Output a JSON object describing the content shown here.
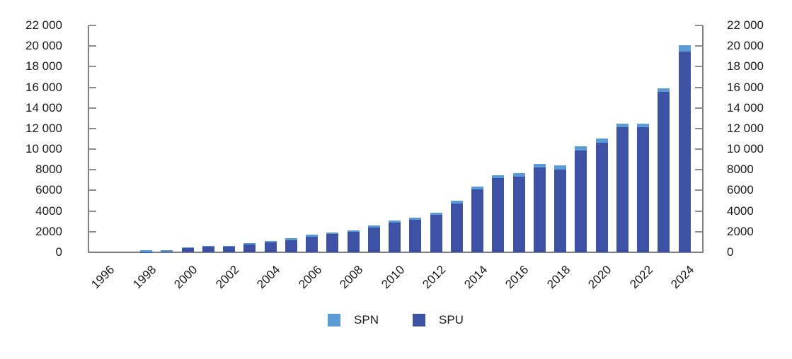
{
  "chart_data": {
    "type": "bar",
    "stacked": true,
    "title": "",
    "xlabel": "",
    "ylabel": "",
    "categories": [
      1996,
      1997,
      1998,
      1999,
      2000,
      2001,
      2002,
      2003,
      2004,
      2005,
      2006,
      2007,
      2008,
      2009,
      2010,
      2011,
      2012,
      2013,
      2014,
      2015,
      2016,
      2017,
      2018,
      2019,
      2020,
      2021,
      2022,
      2023,
      2024
    ],
    "series": [
      {
        "name": "SPN",
        "color": "#5B9BD5",
        "stack_role": "top",
        "values": [
          0,
          0,
          170,
          180,
          70,
          110,
          110,
          160,
          170,
          200,
          200,
          150,
          150,
          200,
          200,
          200,
          200,
          250,
          300,
          300,
          350,
          350,
          400,
          400,
          450,
          400,
          400,
          350,
          650
        ]
      },
      {
        "name": "SPU",
        "color": "#3E52A5",
        "stack_role": "bottom",
        "values": [
          0,
          0,
          30,
          40,
          380,
          540,
          520,
          740,
          930,
          1150,
          1500,
          1800,
          2000,
          2400,
          2850,
          3150,
          3650,
          4750,
          6100,
          7200,
          7350,
          8250,
          8000,
          9850,
          10600,
          12100,
          12100,
          15550,
          19450
        ]
      }
    ],
    "stacked_totals": [
      0,
      0,
      200,
      220,
      450,
      650,
      630,
      900,
      1100,
      1350,
      1700,
      1950,
      2150,
      2600,
      3050,
      3350,
      3850,
      5000,
      6400,
      7500,
      7700,
      8600,
      8400,
      10250,
      11050,
      12500,
      12500,
      15900,
      20100
    ],
    "ylim": [
      0,
      22000
    ],
    "y_tick_step": 2000,
    "y_ticks": [
      {
        "value": 0,
        "label": "0"
      },
      {
        "value": 2000,
        "label": "2000"
      },
      {
        "value": 4000,
        "label": "4000"
      },
      {
        "value": 6000,
        "label": "6000"
      },
      {
        "value": 8000,
        "label": "8000"
      },
      {
        "value": 10000,
        "label": "10 000"
      },
      {
        "value": 12000,
        "label": "12 000"
      },
      {
        "value": 14000,
        "label": "14 000"
      },
      {
        "value": 16000,
        "label": "16 000"
      },
      {
        "value": 18000,
        "label": "18 000"
      },
      {
        "value": 20000,
        "label": "20 000"
      },
      {
        "value": 22000,
        "label": "22 000"
      }
    ],
    "x_tick_labels": [
      "1996",
      "1998",
      "2000",
      "2002",
      "2004",
      "2006",
      "2008",
      "2010",
      "2012",
      "2014",
      "2016",
      "2018",
      "2020",
      "2022",
      "2024"
    ],
    "grid": false,
    "legend_position": "bottom",
    "axes": {
      "left": true,
      "right": true,
      "bottom": true,
      "top": false
    },
    "axis_color": "#7f7f7f",
    "label_color": "#1a1a1a"
  },
  "legend": {
    "spn_label": "SPN",
    "spu_label": "SPU"
  }
}
